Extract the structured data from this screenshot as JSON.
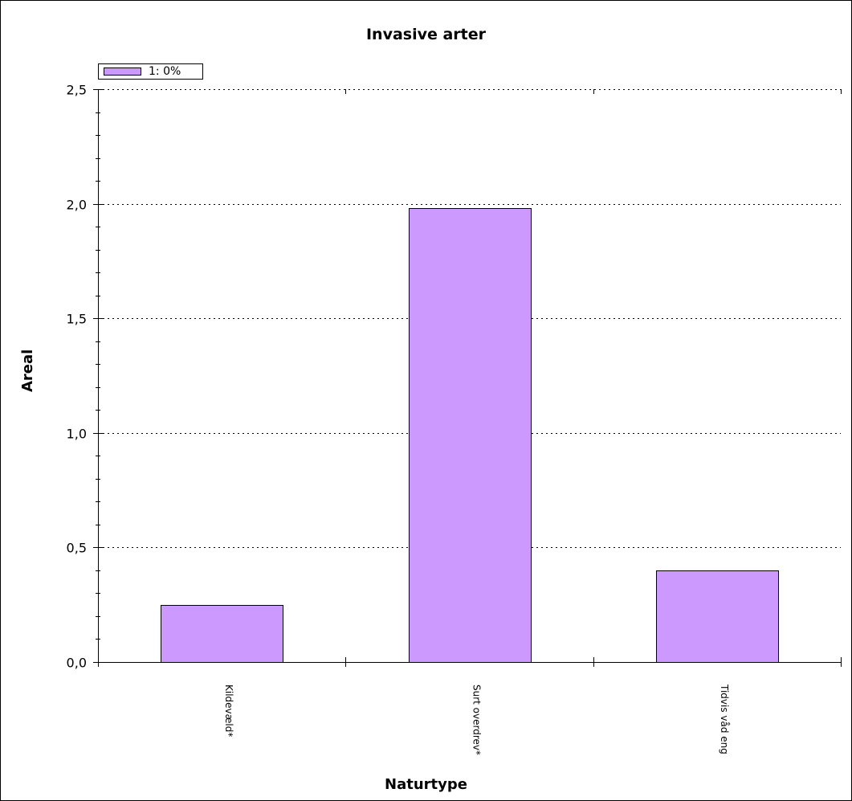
{
  "chart_data": {
    "type": "bar",
    "title": "Invasive arter",
    "xlabel": "Naturtype",
    "ylabel": "Areal",
    "categories": [
      "Kildevæld*",
      "Surt overdrev*",
      "Tidvis våd eng"
    ],
    "series": [
      {
        "name": "1: 0%",
        "values": [
          0.25,
          1.98,
          0.4
        ],
        "color": "#cc99ff"
      }
    ],
    "ylim": [
      0,
      2.5
    ],
    "yticks": [
      {
        "value": 0,
        "label": "0,0"
      },
      {
        "value": 0.5,
        "label": "0,5"
      },
      {
        "value": 1.0,
        "label": "1,0"
      },
      {
        "value": 1.5,
        "label": "1,5"
      },
      {
        "value": 2.0,
        "label": "2,0"
      },
      {
        "value": 2.5,
        "label": "2,5"
      }
    ],
    "grid": true,
    "legend_position": "top-left"
  }
}
